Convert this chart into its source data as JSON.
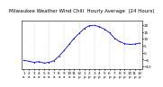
{
  "title": "Milwaukee Weather Wind Chill  Hourly Average  (24 Hours)",
  "hours": [
    1,
    2,
    3,
    4,
    5,
    6,
    7,
    8,
    9,
    10,
    11,
    12,
    13,
    14,
    15,
    16,
    17,
    18,
    19,
    20,
    21,
    22,
    23,
    24
  ],
  "values": [
    -5.5,
    -6.2,
    -7.0,
    -6.5,
    -7.5,
    -7.0,
    -5.8,
    -2.5,
    1.5,
    6.0,
    10.5,
    14.0,
    17.5,
    19.5,
    19.8,
    18.8,
    17.0,
    14.5,
    10.5,
    8.0,
    6.5,
    6.0,
    6.2,
    7.0
  ],
  "line_color": "#0000dd",
  "dot_color": "#0000dd",
  "bg_color": "#ffffff",
  "grid_color": "#999999",
  "ylim": [
    -12,
    23
  ],
  "yticks": [
    -10,
    -5,
    0,
    5,
    10,
    15,
    20
  ],
  "title_fontsize": 4.0,
  "tick_fontsize": 3.0,
  "grid_hours": [
    3,
    6,
    9,
    12,
    15,
    18,
    21,
    24
  ]
}
